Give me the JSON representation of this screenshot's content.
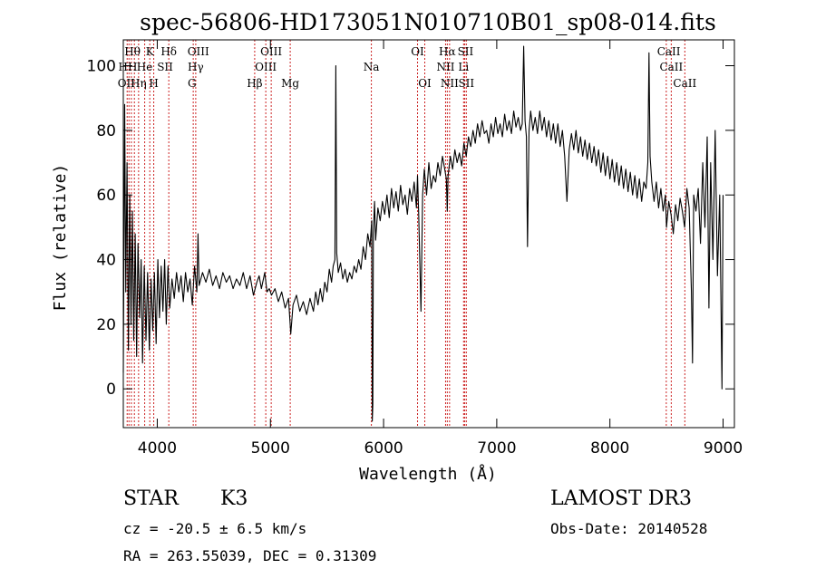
{
  "chart_data": {
    "type": "line",
    "title": "spec-56806-HD173051N010710B01_sp08-014.fits",
    "xlabel": "Wavelength (Å)",
    "ylabel": "Flux (relative)",
    "xlim": [
      3700,
      9100
    ],
    "ylim": [
      -12,
      108
    ],
    "xticks": [
      4000,
      5000,
      6000,
      7000,
      8000,
      9000
    ],
    "yticks": [
      0,
      20,
      40,
      60,
      80,
      100
    ],
    "ytick_labels": [
      "0",
      "20",
      "40",
      "60",
      "80",
      "100"
    ],
    "series": [
      {
        "name": "spectrum",
        "points": [
          [
            3700,
            5
          ],
          [
            3712,
            88
          ],
          [
            3722,
            30
          ],
          [
            3733,
            70
          ],
          [
            3745,
            12
          ],
          [
            3757,
            60
          ],
          [
            3768,
            20
          ],
          [
            3780,
            55
          ],
          [
            3792,
            15
          ],
          [
            3805,
            48
          ],
          [
            3818,
            10
          ],
          [
            3830,
            45
          ],
          [
            3845,
            22
          ],
          [
            3858,
            40
          ],
          [
            3870,
            8
          ],
          [
            3885,
            38
          ],
          [
            3900,
            15
          ],
          [
            3915,
            36
          ],
          [
            3930,
            12
          ],
          [
            3945,
            34
          ],
          [
            3960,
            18
          ],
          [
            3975,
            36
          ],
          [
            3990,
            14
          ],
          [
            4005,
            40
          ],
          [
            4020,
            22
          ],
          [
            4035,
            38
          ],
          [
            4050,
            24
          ],
          [
            4065,
            40
          ],
          [
            4080,
            20
          ],
          [
            4095,
            38
          ],
          [
            4110,
            25
          ],
          [
            4130,
            34
          ],
          [
            4150,
            28
          ],
          [
            4170,
            36
          ],
          [
            4190,
            30
          ],
          [
            4210,
            35
          ],
          [
            4230,
            27
          ],
          [
            4250,
            36
          ],
          [
            4270,
            30
          ],
          [
            4290,
            34
          ],
          [
            4310,
            26
          ],
          [
            4330,
            38
          ],
          [
            4350,
            30
          ],
          [
            4360,
            48
          ],
          [
            4370,
            32
          ],
          [
            4400,
            36
          ],
          [
            4430,
            33
          ],
          [
            4460,
            37
          ],
          [
            4490,
            32
          ],
          [
            4520,
            35
          ],
          [
            4550,
            31
          ],
          [
            4580,
            36
          ],
          [
            4610,
            33
          ],
          [
            4640,
            35
          ],
          [
            4670,
            31
          ],
          [
            4700,
            34
          ],
          [
            4730,
            32
          ],
          [
            4760,
            36
          ],
          [
            4790,
            31
          ],
          [
            4820,
            35
          ],
          [
            4850,
            29
          ],
          [
            4880,
            33
          ],
          [
            4900,
            35
          ],
          [
            4920,
            31
          ],
          [
            4950,
            36
          ],
          [
            4970,
            30
          ],
          [
            4990,
            31
          ],
          [
            5010,
            29
          ],
          [
            5040,
            31
          ],
          [
            5070,
            27
          ],
          [
            5100,
            30
          ],
          [
            5130,
            25
          ],
          [
            5160,
            28
          ],
          [
            5180,
            17
          ],
          [
            5200,
            26
          ],
          [
            5230,
            29
          ],
          [
            5260,
            24
          ],
          [
            5290,
            27
          ],
          [
            5320,
            23
          ],
          [
            5350,
            28
          ],
          [
            5380,
            24
          ],
          [
            5400,
            30
          ],
          [
            5420,
            26
          ],
          [
            5440,
            31
          ],
          [
            5460,
            27
          ],
          [
            5480,
            33
          ],
          [
            5500,
            30
          ],
          [
            5520,
            37
          ],
          [
            5540,
            33
          ],
          [
            5555,
            38
          ],
          [
            5570,
            40
          ],
          [
            5578,
            100
          ],
          [
            5586,
            42
          ],
          [
            5600,
            36
          ],
          [
            5620,
            39
          ],
          [
            5640,
            34
          ],
          [
            5660,
            37
          ],
          [
            5680,
            33
          ],
          [
            5700,
            36
          ],
          [
            5720,
            34
          ],
          [
            5740,
            38
          ],
          [
            5760,
            36
          ],
          [
            5780,
            40
          ],
          [
            5800,
            37
          ],
          [
            5820,
            44
          ],
          [
            5840,
            40
          ],
          [
            5860,
            48
          ],
          [
            5880,
            44
          ],
          [
            5895,
            52
          ],
          [
            5900,
            -10
          ],
          [
            5905,
            -5
          ],
          [
            5910,
            48
          ],
          [
            5920,
            58
          ],
          [
            5930,
            46
          ],
          [
            5950,
            56
          ],
          [
            5970,
            52
          ],
          [
            5990,
            58
          ],
          [
            6010,
            54
          ],
          [
            6030,
            60
          ],
          [
            6050,
            53
          ],
          [
            6070,
            62
          ],
          [
            6090,
            56
          ],
          [
            6110,
            61
          ],
          [
            6130,
            55
          ],
          [
            6150,
            63
          ],
          [
            6170,
            57
          ],
          [
            6190,
            60
          ],
          [
            6210,
            54
          ],
          [
            6230,
            62
          ],
          [
            6250,
            58
          ],
          [
            6270,
            64
          ],
          [
            6290,
            56
          ],
          [
            6300,
            66
          ],
          [
            6310,
            54
          ],
          [
            6330,
            24
          ],
          [
            6345,
            60
          ],
          [
            6360,
            68
          ],
          [
            6380,
            60
          ],
          [
            6400,
            70
          ],
          [
            6420,
            62
          ],
          [
            6440,
            66
          ],
          [
            6460,
            64
          ],
          [
            6480,
            70
          ],
          [
            6500,
            66
          ],
          [
            6520,
            72
          ],
          [
            6540,
            68
          ],
          [
            6555,
            65
          ],
          [
            6563,
            55
          ],
          [
            6570,
            66
          ],
          [
            6590,
            72
          ],
          [
            6610,
            68
          ],
          [
            6630,
            74
          ],
          [
            6650,
            70
          ],
          [
            6670,
            73
          ],
          [
            6690,
            69
          ],
          [
            6710,
            76
          ],
          [
            6730,
            72
          ],
          [
            6750,
            78
          ],
          [
            6770,
            75
          ],
          [
            6790,
            80
          ],
          [
            6810,
            76
          ],
          [
            6830,
            82
          ],
          [
            6850,
            78
          ],
          [
            6870,
            83
          ],
          [
            6890,
            79
          ],
          [
            6910,
            80
          ],
          [
            6930,
            76
          ],
          [
            6950,
            82
          ],
          [
            6970,
            78
          ],
          [
            6990,
            84
          ],
          [
            7010,
            79
          ],
          [
            7030,
            82
          ],
          [
            7050,
            78
          ],
          [
            7070,
            85
          ],
          [
            7090,
            80
          ],
          [
            7110,
            83
          ],
          [
            7130,
            79
          ],
          [
            7150,
            86
          ],
          [
            7170,
            81
          ],
          [
            7190,
            84
          ],
          [
            7210,
            80
          ],
          [
            7225,
            82
          ],
          [
            7238,
            106
          ],
          [
            7250,
            83
          ],
          [
            7262,
            78
          ],
          [
            7272,
            44
          ],
          [
            7285,
            80
          ],
          [
            7300,
            86
          ],
          [
            7320,
            80
          ],
          [
            7340,
            84
          ],
          [
            7360,
            79
          ],
          [
            7380,
            86
          ],
          [
            7400,
            80
          ],
          [
            7420,
            84
          ],
          [
            7440,
            78
          ],
          [
            7460,
            83
          ],
          [
            7480,
            77
          ],
          [
            7500,
            82
          ],
          [
            7520,
            76
          ],
          [
            7540,
            82
          ],
          [
            7560,
            75
          ],
          [
            7580,
            80
          ],
          [
            7600,
            72
          ],
          [
            7620,
            58
          ],
          [
            7640,
            74
          ],
          [
            7660,
            79
          ],
          [
            7680,
            74
          ],
          [
            7700,
            80
          ],
          [
            7720,
            73
          ],
          [
            7740,
            78
          ],
          [
            7760,
            72
          ],
          [
            7780,
            77
          ],
          [
            7800,
            71
          ],
          [
            7820,
            76
          ],
          [
            7840,
            70
          ],
          [
            7860,
            75
          ],
          [
            7880,
            69
          ],
          [
            7900,
            74
          ],
          [
            7920,
            67
          ],
          [
            7940,
            73
          ],
          [
            7960,
            66
          ],
          [
            7980,
            72
          ],
          [
            8000,
            65
          ],
          [
            8020,
            71
          ],
          [
            8040,
            64
          ],
          [
            8060,
            70
          ],
          [
            8080,
            63
          ],
          [
            8100,
            69
          ],
          [
            8120,
            62
          ],
          [
            8140,
            68
          ],
          [
            8160,
            61
          ],
          [
            8180,
            67
          ],
          [
            8200,
            60
          ],
          [
            8220,
            66
          ],
          [
            8240,
            59
          ],
          [
            8260,
            65
          ],
          [
            8280,
            58
          ],
          [
            8300,
            64
          ],
          [
            8320,
            62
          ],
          [
            8335,
            70
          ],
          [
            8345,
            104
          ],
          [
            8355,
            72
          ],
          [
            8370,
            64
          ],
          [
            8390,
            58
          ],
          [
            8410,
            64
          ],
          [
            8430,
            56
          ],
          [
            8450,
            62
          ],
          [
            8470,
            55
          ],
          [
            8490,
            60
          ],
          [
            8500,
            50
          ],
          [
            8520,
            58
          ],
          [
            8540,
            54
          ],
          [
            8560,
            48
          ],
          [
            8580,
            57
          ],
          [
            8600,
            52
          ],
          [
            8620,
            59
          ],
          [
            8640,
            55
          ],
          [
            8660,
            50
          ],
          [
            8680,
            62
          ],
          [
            8700,
            56
          ],
          [
            8720,
            30
          ],
          [
            8730,
            8
          ],
          [
            8740,
            60
          ],
          [
            8760,
            55
          ],
          [
            8780,
            62
          ],
          [
            8800,
            45
          ],
          [
            8820,
            70
          ],
          [
            8840,
            50
          ],
          [
            8860,
            78
          ],
          [
            8875,
            25
          ],
          [
            8890,
            70
          ],
          [
            8910,
            40
          ],
          [
            8930,
            80
          ],
          [
            8950,
            35
          ],
          [
            8970,
            60
          ],
          [
            8990,
            0
          ],
          [
            9000,
            60
          ]
        ]
      }
    ],
    "line_markers": {
      "wavelengths": [
        3734,
        3750,
        3771,
        3798,
        3835,
        3889,
        3934,
        3969,
        4102,
        4318,
        4340,
        4861,
        4959,
        5007,
        5175,
        5892,
        6300,
        6364,
        6548,
        6563,
        6583,
        6707,
        6717,
        6731,
        8498,
        8542,
        8662
      ],
      "labels_row1": [
        {
          "text": "Hθ",
          "wl": 3781
        },
        {
          "text": "K",
          "wl": 3934
        },
        {
          "text": "Hδ",
          "wl": 4102
        },
        {
          "text": "OIII",
          "wl": 4363
        },
        {
          "text": "OIII",
          "wl": 5007
        },
        {
          "text": "OI",
          "wl": 6300
        },
        {
          "text": "Hα",
          "wl": 6563
        },
        {
          "text": "SII",
          "wl": 6724
        },
        {
          "text": "CaII",
          "wl": 8520
        }
      ],
      "labels_row2": [
        {
          "text": "HH",
          "wl": 3740
        },
        {
          "text": "He",
          "wl": 3889
        },
        {
          "text": "SII",
          "wl": 4069
        },
        {
          "text": "Hγ",
          "wl": 4340
        },
        {
          "text": "OIII",
          "wl": 4959
        },
        {
          "text": "Na",
          "wl": 5892
        },
        {
          "text": "NII",
          "wl": 6548
        },
        {
          "text": "Li",
          "wl": 6707
        },
        {
          "text": "CaII",
          "wl": 8542
        }
      ],
      "labels_row3": [
        {
          "text": "OII",
          "wl": 3727
        },
        {
          "text": "Hη",
          "wl": 3835
        },
        {
          "text": "H",
          "wl": 3969
        },
        {
          "text": "G",
          "wl": 4307
        },
        {
          "text": "Hβ",
          "wl": 4861
        },
        {
          "text": "Mg",
          "wl": 5175
        },
        {
          "text": "OI",
          "wl": 6364
        },
        {
          "text": "NII",
          "wl": 6583
        },
        {
          "text": "SII",
          "wl": 6731
        },
        {
          "text": "CaII",
          "wl": 8662
        }
      ]
    },
    "marker_color": "#cc2222"
  },
  "info": {
    "object_type": "STAR",
    "subclass": "K3",
    "survey": "LAMOST DR3",
    "cz_line": "cz = -20.5 ± 6.5 km/s",
    "obs_date": "Obs-Date: 20140528",
    "coords_line": "RA = 263.55039, DEC =    0.31309"
  }
}
